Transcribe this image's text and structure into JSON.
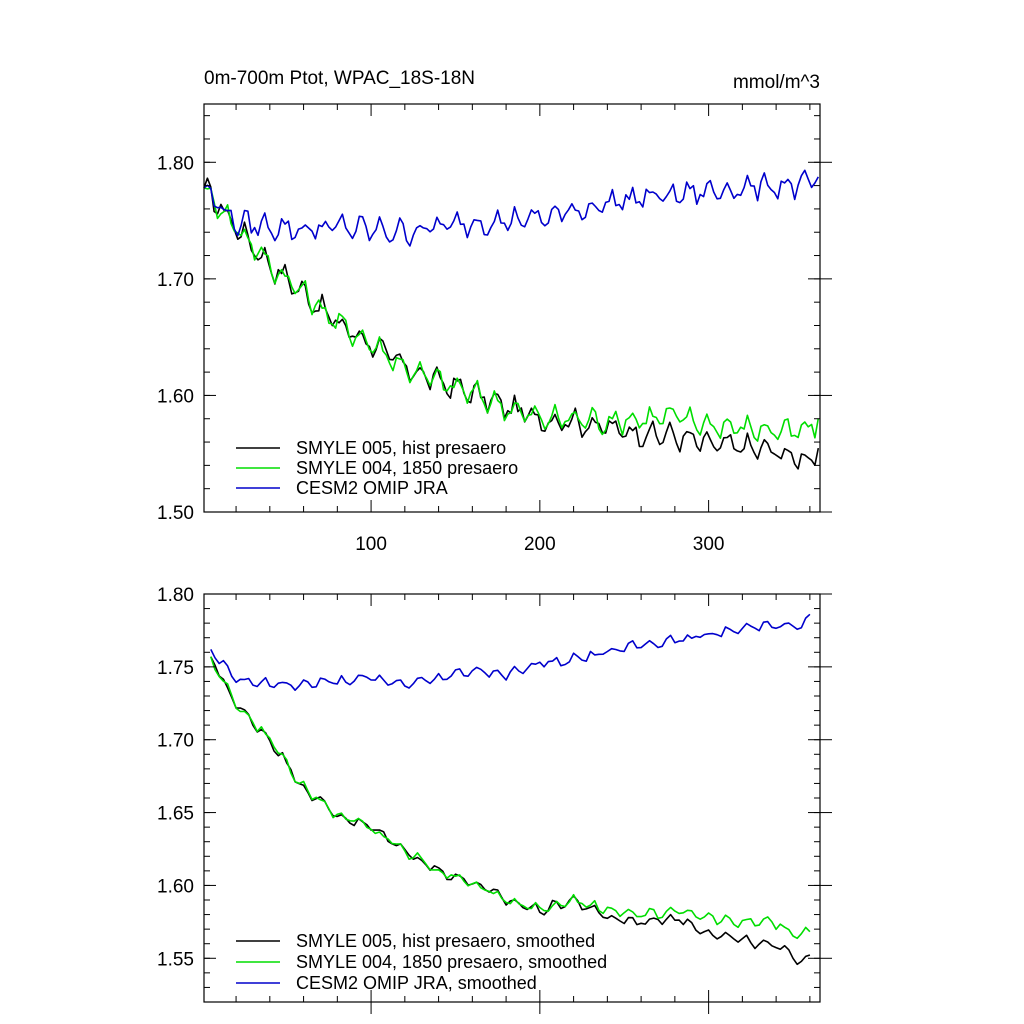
{
  "chart_data": [
    {
      "type": "line",
      "title": "0m-700m Ptot, WPAC_18S-18N",
      "units": "mmol/m^3",
      "xlim": [
        1,
        366
      ],
      "ylim": [
        1.5,
        1.85
      ],
      "xticks": [
        100,
        200,
        300
      ],
      "xtick_labels": [
        "100",
        "200",
        "300"
      ],
      "yticks": [
        1.5,
        1.6,
        1.7,
        1.8
      ],
      "ytick_labels": [
        "1.50",
        "1.60",
        "1.70",
        "1.80"
      ],
      "legend_position": "bottom-left",
      "series": [
        {
          "name": "SMYLE 005, hist presaero",
          "color": "#000000",
          "x": [
            1,
            20,
            40,
            60,
            80,
            100,
            120,
            140,
            160,
            180,
            200,
            220,
            240,
            260,
            280,
            300,
            320,
            340,
            355,
            366
          ],
          "y": [
            1.778,
            1.745,
            1.712,
            1.688,
            1.662,
            1.645,
            1.624,
            1.612,
            1.602,
            1.59,
            1.58,
            1.578,
            1.572,
            1.568,
            1.565,
            1.558,
            1.556,
            1.552,
            1.545,
            1.552
          ]
        },
        {
          "name": "SMYLE 004, 1850 presaero",
          "color": "#00dd00",
          "x": [
            1,
            20,
            40,
            60,
            80,
            100,
            120,
            140,
            160,
            180,
            200,
            220,
            240,
            260,
            280,
            300,
            320,
            340,
            355,
            366
          ],
          "y": [
            1.778,
            1.745,
            1.712,
            1.688,
            1.662,
            1.645,
            1.624,
            1.612,
            1.602,
            1.59,
            1.58,
            1.58,
            1.578,
            1.58,
            1.582,
            1.575,
            1.572,
            1.57,
            1.568,
            1.578
          ]
        },
        {
          "name": "CESM2 OMIP JRA",
          "color": "#0000cc",
          "x": [
            1,
            20,
            40,
            60,
            80,
            100,
            120,
            140,
            160,
            180,
            200,
            220,
            240,
            260,
            280,
            300,
            320,
            340,
            355,
            366
          ],
          "y": [
            1.778,
            1.748,
            1.745,
            1.742,
            1.745,
            1.742,
            1.74,
            1.745,
            1.748,
            1.75,
            1.752,
            1.758,
            1.765,
            1.77,
            1.772,
            1.775,
            1.778,
            1.78,
            1.78,
            1.785
          ]
        }
      ]
    },
    {
      "type": "line",
      "xlim": [
        1,
        366
      ],
      "ylim": [
        1.52,
        1.8
      ],
      "xticks": [
        100,
        200,
        300
      ],
      "yticks": [
        1.55,
        1.6,
        1.65,
        1.7,
        1.75,
        1.8
      ],
      "ytick_labels": [
        "1.55",
        "1.60",
        "1.65",
        "1.70",
        "1.75",
        "1.80"
      ],
      "legend_position": "bottom-left",
      "series": [
        {
          "name": "SMYLE 005, hist presaero, smoothed",
          "color": "#000000",
          "x": [
            5,
            20,
            40,
            60,
            80,
            100,
            120,
            140,
            160,
            180,
            200,
            220,
            240,
            260,
            280,
            300,
            320,
            340,
            355,
            362
          ],
          "y": [
            1.757,
            1.724,
            1.7,
            1.667,
            1.648,
            1.64,
            1.624,
            1.61,
            1.602,
            1.59,
            1.583,
            1.59,
            1.578,
            1.575,
            1.578,
            1.568,
            1.562,
            1.558,
            1.548,
            1.555
          ]
        },
        {
          "name": "SMYLE 004, 1850 presaero, smoothed",
          "color": "#00dd00",
          "x": [
            5,
            20,
            40,
            60,
            80,
            100,
            120,
            140,
            160,
            180,
            200,
            220,
            240,
            260,
            280,
            300,
            320,
            340,
            355,
            362
          ],
          "y": [
            1.757,
            1.724,
            1.7,
            1.667,
            1.648,
            1.64,
            1.624,
            1.61,
            1.602,
            1.59,
            1.583,
            1.59,
            1.583,
            1.58,
            1.582,
            1.578,
            1.575,
            1.574,
            1.565,
            1.572
          ]
        },
        {
          "name": "CESM2 OMIP JRA, smoothed",
          "color": "#0000cc",
          "x": [
            5,
            20,
            40,
            60,
            80,
            100,
            120,
            140,
            160,
            180,
            200,
            220,
            240,
            260,
            280,
            300,
            320,
            340,
            355,
            362
          ],
          "y": [
            1.762,
            1.742,
            1.738,
            1.738,
            1.74,
            1.742,
            1.738,
            1.742,
            1.748,
            1.745,
            1.752,
            1.755,
            1.76,
            1.765,
            1.768,
            1.772,
            1.776,
            1.78,
            1.777,
            1.788
          ]
        }
      ]
    }
  ]
}
